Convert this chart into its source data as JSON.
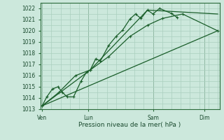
{
  "bg_color": "#cce8dc",
  "grid_color": "#aacfbe",
  "line_color": "#1a5e2a",
  "xlabel": "Pression niveau de la mer( hPa )",
  "ylim": [
    1013,
    1022.5
  ],
  "yticks": [
    1013,
    1014,
    1015,
    1016,
    1017,
    1018,
    1019,
    1020,
    1021,
    1022
  ],
  "xtick_labels": [
    "Ven",
    "Lun",
    "Sam",
    "Dim"
  ],
  "xtick_positions": [
    0.0,
    2.5,
    6.0,
    8.8
  ],
  "xlim": [
    -0.1,
    9.6
  ],
  "series1_marked": [
    [
      0.0,
      1013.3
    ],
    [
      0.25,
      1014.1
    ],
    [
      0.55,
      1014.8
    ],
    [
      0.85,
      1015.0
    ],
    [
      1.1,
      1014.5
    ],
    [
      1.35,
      1014.1
    ],
    [
      1.7,
      1014.1
    ],
    [
      2.1,
      1015.5
    ],
    [
      2.4,
      1016.3
    ],
    [
      2.6,
      1016.5
    ],
    [
      2.9,
      1017.5
    ],
    [
      3.15,
      1017.3
    ],
    [
      3.6,
      1018.7
    ],
    [
      4.0,
      1019.5
    ],
    [
      4.35,
      1020.05
    ],
    [
      4.75,
      1021.05
    ],
    [
      5.05,
      1021.5
    ],
    [
      5.35,
      1021.1
    ],
    [
      5.7,
      1021.85
    ],
    [
      6.0,
      1021.5
    ],
    [
      6.35,
      1022.0
    ],
    [
      7.0,
      1021.55
    ],
    [
      7.3,
      1021.2
    ]
  ],
  "series2_marked": [
    [
      0.0,
      1013.3
    ],
    [
      0.9,
      1014.5
    ],
    [
      1.8,
      1016.0
    ],
    [
      2.6,
      1016.5
    ],
    [
      3.6,
      1017.7
    ],
    [
      4.75,
      1019.5
    ],
    [
      5.7,
      1020.5
    ],
    [
      6.5,
      1021.1
    ],
    [
      7.6,
      1021.5
    ],
    [
      9.5,
      1020.0
    ]
  ],
  "series3_plain": [
    [
      0.0,
      1013.3
    ],
    [
      2.6,
      1016.5
    ],
    [
      5.7,
      1021.85
    ],
    [
      9.5,
      1021.5
    ]
  ],
  "series4_plain": [
    [
      0.0,
      1013.3
    ],
    [
      9.5,
      1020.0
    ]
  ]
}
